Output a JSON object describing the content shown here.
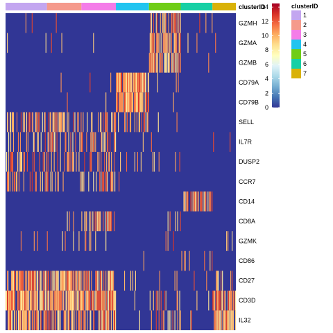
{
  "chart_data": {
    "type": "heatmap",
    "annotation_title": "clusterID",
    "clusters": [
      {
        "id": "1",
        "color": "#c3a6f0",
        "cells": 60
      },
      {
        "id": "2",
        "color": "#f59a8c",
        "cells": 50
      },
      {
        "id": "3",
        "color": "#f47ce8",
        "cells": 50
      },
      {
        "id": "4",
        "color": "#21c4f0",
        "cells": 48
      },
      {
        "id": "5",
        "color": "#6fcd16",
        "cells": 46
      },
      {
        "id": "6",
        "color": "#16d0a5",
        "cells": 46
      },
      {
        "id": "7",
        "color": "#d9b208",
        "cells": 34
      }
    ],
    "genes": [
      "GZMH",
      "GZMA",
      "GZMB",
      "CD79A",
      "CD79B",
      "SELL",
      "IL7R",
      "DUSP2",
      "CCR7",
      "CD14",
      "CD8A",
      "GZMK",
      "CD86",
      "CD27",
      "CD3D",
      "IL32"
    ],
    "expression_density": {
      "GZMH": [
        0.01,
        0.01,
        0.01,
        0.0,
        0.55,
        0.05,
        0.0
      ],
      "GZMA": [
        0.02,
        0.03,
        0.02,
        0.0,
        0.75,
        0.05,
        0.02
      ],
      "GZMB": [
        0.0,
        0.0,
        0.0,
        0.0,
        0.7,
        0.02,
        0.0
      ],
      "CD79A": [
        0.01,
        0.01,
        0.02,
        0.9,
        0.02,
        0.0,
        0.0
      ],
      "CD79B": [
        0.01,
        0.01,
        0.02,
        0.85,
        0.02,
        0.0,
        0.0
      ],
      "SELL": [
        0.45,
        0.5,
        0.45,
        0.25,
        0.05,
        0.02,
        0.02
      ],
      "IL7R": [
        0.25,
        0.35,
        0.3,
        0.02,
        0.05,
        0.0,
        0.05
      ],
      "DUSP2": [
        0.3,
        0.35,
        0.3,
        0.1,
        0.15,
        0.02,
        0.0
      ],
      "CCR7": [
        0.3,
        0.3,
        0.3,
        0.03,
        0.02,
        0.0,
        0.02
      ],
      "CD14": [
        0.01,
        0.0,
        0.01,
        0.0,
        0.0,
        0.55,
        0.02
      ],
      "CD8A": [
        0.02,
        0.05,
        0.55,
        0.0,
        0.1,
        0.0,
        0.02
      ],
      "GZMK": [
        0.02,
        0.05,
        0.08,
        0.0,
        0.05,
        0.0,
        0.05
      ],
      "CD86": [
        0.0,
        0.01,
        0.0,
        0.02,
        0.0,
        0.12,
        0.0
      ],
      "CD27": [
        0.7,
        0.75,
        0.7,
        0.05,
        0.05,
        0.02,
        0.3
      ],
      "CD3D": [
        0.85,
        0.9,
        0.85,
        0.02,
        0.1,
        0.02,
        0.7
      ],
      "IL32": [
        0.6,
        0.65,
        0.6,
        0.02,
        0.2,
        0.02,
        0.8
      ]
    },
    "legend": {
      "ticks": [
        0,
        2,
        4,
        6,
        8,
        10,
        12,
        14
      ],
      "range": [
        0,
        14.5
      ],
      "colors": [
        "#313695",
        "#4575b4",
        "#74add1",
        "#abd9e9",
        "#e0f3f8",
        "#ffffbf",
        "#fee090",
        "#fdae61",
        "#f46d43",
        "#d73027",
        "#a50026"
      ]
    }
  }
}
